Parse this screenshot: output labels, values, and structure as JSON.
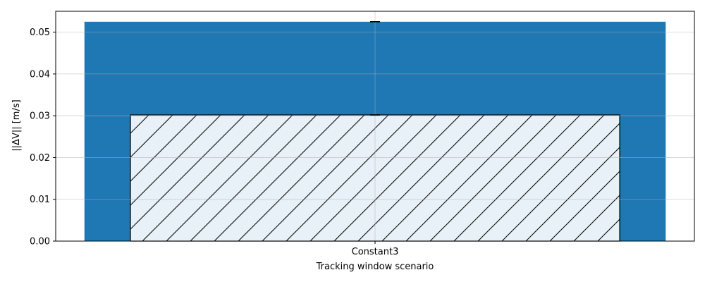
{
  "chart_data": {
    "type": "bar",
    "title": "",
    "xlabel": "Tracking window scenario",
    "ylabel": "||ΔV|| [m/s]",
    "categories": [
      "Constant3"
    ],
    "ylim": [
      0,
      0.055
    ],
    "yticks": [
      0.0,
      0.01,
      0.02,
      0.03,
      0.04,
      0.05
    ],
    "ytick_labels": [
      "0.00",
      "0.01",
      "0.02",
      "0.03",
      "0.04",
      "0.05"
    ],
    "grid": true,
    "legend": "none",
    "series": [
      {
        "values": [
          0.0525
        ],
        "error": [
          0.0
        ],
        "color": "#1f77b4",
        "style": "solid"
      },
      {
        "values": [
          0.0302
        ],
        "error": [
          0.0
        ],
        "color": "#e8f0f8",
        "style": "hatched"
      }
    ]
  }
}
